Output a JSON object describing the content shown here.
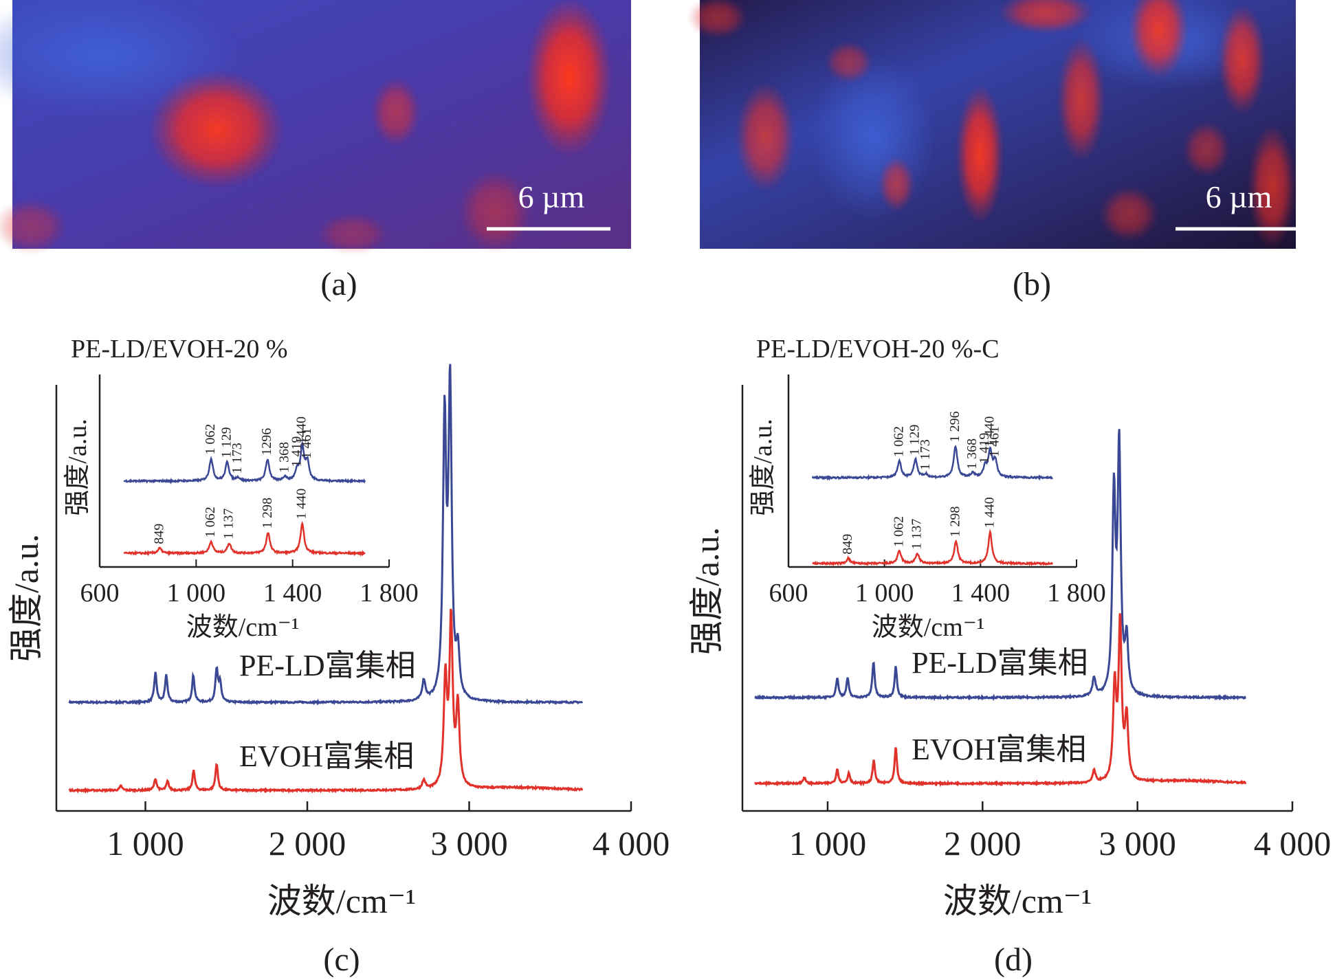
{
  "colors": {
    "blue": "#3a4794",
    "red": "#e0312a",
    "axis": "#231f20"
  },
  "images": [
    {
      "caption": "(a)",
      "scale_label": "6 µm",
      "red_domains": [
        [
          0.33,
          0.52,
          0.11,
          0.17,
          0.95
        ],
        [
          0.9,
          0.31,
          0.07,
          0.23,
          1.0
        ],
        [
          0.62,
          0.45,
          0.04,
          0.1,
          0.55
        ],
        [
          0.78,
          0.85,
          0.06,
          0.12,
          0.45
        ],
        [
          0.03,
          0.91,
          0.06,
          0.08,
          0.4
        ],
        [
          0.55,
          0.94,
          0.06,
          0.06,
          0.35
        ]
      ]
    },
    {
      "caption": "(b)",
      "scale_label": "6 µm",
      "red_domains": [
        [
          0.47,
          0.62,
          0.04,
          0.2,
          0.95
        ],
        [
          0.64,
          0.4,
          0.04,
          0.18,
          0.75
        ],
        [
          0.77,
          0.12,
          0.05,
          0.14,
          0.9
        ],
        [
          0.11,
          0.55,
          0.05,
          0.16,
          0.7
        ],
        [
          0.33,
          0.74,
          0.03,
          0.08,
          0.6
        ],
        [
          0.91,
          0.24,
          0.04,
          0.16,
          0.8
        ],
        [
          0.96,
          0.75,
          0.04,
          0.18,
          0.7
        ],
        [
          0.58,
          0.05,
          0.08,
          0.06,
          0.7
        ],
        [
          0.03,
          0.07,
          0.05,
          0.06,
          0.5
        ],
        [
          0.25,
          0.25,
          0.04,
          0.06,
          0.5
        ],
        [
          0.72,
          0.86,
          0.05,
          0.08,
          0.5
        ],
        [
          0.85,
          0.6,
          0.04,
          0.08,
          0.5
        ]
      ]
    }
  ],
  "chart_data": [
    {
      "panel": "(c)",
      "type": "line",
      "title": "",
      "xlabel": "波数/cm⁻¹",
      "ylabel": "强度/a.u.",
      "xlim": [
        450,
        4000
      ],
      "x_ticks": [
        1000,
        2000,
        3000,
        4000
      ],
      "x_tick_labels": [
        "1 000",
        "2 000",
        "3 000",
        "4 000"
      ],
      "series": [
        {
          "name": "PE-LD富集相",
          "color": "#3a4794",
          "peaks": [
            [
              1062,
              0.33
            ],
            [
              1129,
              0.3
            ],
            [
              1296,
              0.3
            ],
            [
              1440,
              0.36
            ],
            [
              1461,
              0.22
            ],
            [
              2720,
              0.22
            ],
            [
              2848,
              3.05
            ],
            [
              2882,
              3.45
            ],
            [
              2930,
              0.5
            ]
          ]
        },
        {
          "name": "EVOH富集相",
          "color": "#e0312a",
          "peaks": [
            [
              849,
              0.05
            ],
            [
              1062,
              0.13
            ],
            [
              1137,
              0.1
            ],
            [
              1298,
              0.22
            ],
            [
              1440,
              0.3
            ],
            [
              2720,
              0.1
            ],
            [
              2853,
              1.2
            ],
            [
              2888,
              1.85
            ],
            [
              2930,
              0.9
            ]
          ]
        }
      ],
      "inset": {
        "title": "PE-LD/EVOH-20 %",
        "xlabel": "波数/cm⁻¹",
        "ylabel": "强度/a.u.",
        "xlim": [
          600,
          1800
        ],
        "x_ticks": [
          600,
          1000,
          1400,
          1800
        ],
        "x_tick_labels": [
          "600",
          "1 000",
          "1 400",
          "1 800"
        ],
        "series": [
          {
            "name": "PE-LD富集相",
            "color": "#3a4794",
            "peaks": [
              [
                1062,
                0.27
              ],
              [
                1129,
                0.23
              ],
              [
                1173,
                0.04
              ],
              [
                1296,
                0.26
              ],
              [
                1368,
                0.05
              ],
              [
                1419,
                0.12
              ],
              [
                1440,
                0.4
              ],
              [
                1461,
                0.22
              ]
            ],
            "labels": [
              "1 062",
              "1 129",
              "1 173",
              "1296",
              "1 368",
              "1 419",
              "1440",
              "1 461"
            ]
          },
          {
            "name": "EVOH富集相",
            "color": "#e0312a",
            "peaks": [
              [
                849,
                0.06
              ],
              [
                1062,
                0.14
              ],
              [
                1137,
                0.12
              ],
              [
                1298,
                0.25
              ],
              [
                1440,
                0.36
              ]
            ],
            "labels": [
              "849",
              "1 062",
              "1 137",
              "1 298",
              "1 440"
            ]
          }
        ]
      }
    },
    {
      "panel": "(d)",
      "type": "line",
      "title": "",
      "xlabel": "波数/cm⁻¹",
      "ylabel": "强度/a.u.",
      "xlim": [
        450,
        4000
      ],
      "x_ticks": [
        1000,
        2000,
        3000,
        4000
      ],
      "x_tick_labels": [
        "1 000",
        "2 000",
        "3 000",
        "4 000"
      ],
      "series": [
        {
          "name": "PE-LD富集相",
          "color": "#3a4794",
          "peaks": [
            [
              1062,
              0.22
            ],
            [
              1129,
              0.22
            ],
            [
              1296,
              0.4
            ],
            [
              1440,
              0.35
            ],
            [
              2720,
              0.2
            ],
            [
              2848,
              2.2
            ],
            [
              2882,
              2.75
            ],
            [
              2930,
              0.6
            ]
          ]
        },
        {
          "name": "EVOH富集相",
          "color": "#e0312a",
          "peaks": [
            [
              849,
              0.07
            ],
            [
              1062,
              0.16
            ],
            [
              1137,
              0.12
            ],
            [
              1298,
              0.26
            ],
            [
              1440,
              0.4
            ],
            [
              2720,
              0.13
            ],
            [
              2853,
              1.05
            ],
            [
              2888,
              1.75
            ],
            [
              2930,
              0.7
            ]
          ]
        }
      ],
      "inset": {
        "title": "PE-LD/EVOH-20 %-C",
        "xlabel": "波数/cm⁻¹",
        "ylabel": "强度/a.u.",
        "xlim": [
          600,
          1800
        ],
        "x_ticks": [
          600,
          1000,
          1400,
          1800
        ],
        "x_tick_labels": [
          "600",
          "1 000",
          "1 400",
          "1 800"
        ],
        "series": [
          {
            "name": "PE-LD富集相",
            "color": "#3a4794",
            "peaks": [
              [
                1062,
                0.2
              ],
              [
                1129,
                0.22
              ],
              [
                1173,
                0.04
              ],
              [
                1296,
                0.38
              ],
              [
                1368,
                0.05
              ],
              [
                1419,
                0.12
              ],
              [
                1440,
                0.32
              ],
              [
                1461,
                0.2
              ]
            ],
            "labels": [
              "1 062",
              "1 129",
              "1 173",
              "1 296",
              "1 368",
              "1 419",
              "1 440",
              "1 461"
            ]
          },
          {
            "name": "EVOH富集相",
            "color": "#e0312a",
            "peaks": [
              [
                849,
                0.06
              ],
              [
                1062,
                0.15
              ],
              [
                1137,
                0.12
              ],
              [
                1298,
                0.27
              ],
              [
                1440,
                0.38
              ]
            ],
            "labels": [
              "849",
              "1 062",
              "1 137",
              "1 298",
              "1 440"
            ]
          }
        ]
      }
    }
  ]
}
